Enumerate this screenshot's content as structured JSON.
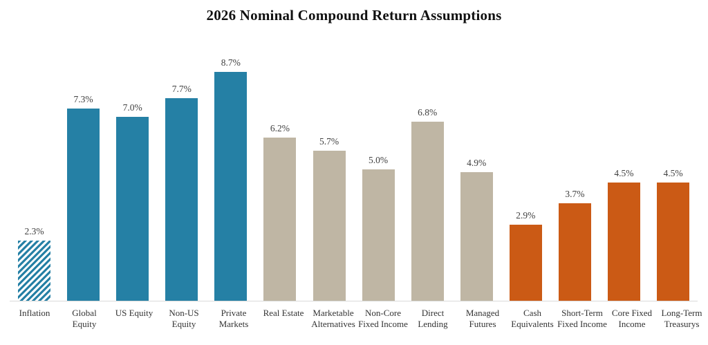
{
  "chart_data": {
    "type": "bar",
    "title": "2026 Nominal Compound Return Assumptions",
    "xlabel": "",
    "ylabel": "",
    "unit": "%",
    "ylim": [
      0,
      10.12
    ],
    "grid": false,
    "legend": null,
    "categories": [
      "Inflation",
      "Global Equity",
      "US Equity",
      "Non-US Equity",
      "Private Markets",
      "Real Estate",
      "Marketable Alternatives",
      "Non-Core Fixed Income",
      "Direct Lending",
      "Managed Futures",
      "Cash Equivalents",
      "Short-Term Fixed Income",
      "Core Fixed Income",
      "Long-Term Treasurys"
    ],
    "values": [
      2.3,
      7.3,
      7.0,
      7.7,
      8.7,
      6.2,
      5.7,
      5.0,
      6.8,
      4.9,
      2.9,
      3.7,
      4.5,
      4.5
    ],
    "data_labels": [
      "2.3%",
      "7.3%",
      "7.0%",
      "7.7%",
      "8.7%",
      "6.2%",
      "5.7%",
      "5.0%",
      "6.8%",
      "4.9%",
      "2.9%",
      "3.7%",
      "4.5%",
      "4.5%"
    ],
    "bar_colors": [
      "#2580A5",
      "#2580A5",
      "#2580A5",
      "#2580A5",
      "#2580A5",
      "#BFB6A4",
      "#BFB6A4",
      "#BFB6A4",
      "#BFB6A4",
      "#BFB6A4",
      "#CB5A15",
      "#CB5A15",
      "#CB5A15",
      "#CB5A15"
    ],
    "hatched": [
      true,
      false,
      false,
      false,
      false,
      false,
      false,
      false,
      false,
      false,
      false,
      false,
      false,
      false
    ],
    "colors": {
      "blue": "#2580A5",
      "tan": "#BFB6A4",
      "orange": "#CB5A15",
      "axis_line": "#D9D9D9",
      "value_label_text": "#404040",
      "axis_label_text": "#333333",
      "title_text": "#111111"
    }
  }
}
